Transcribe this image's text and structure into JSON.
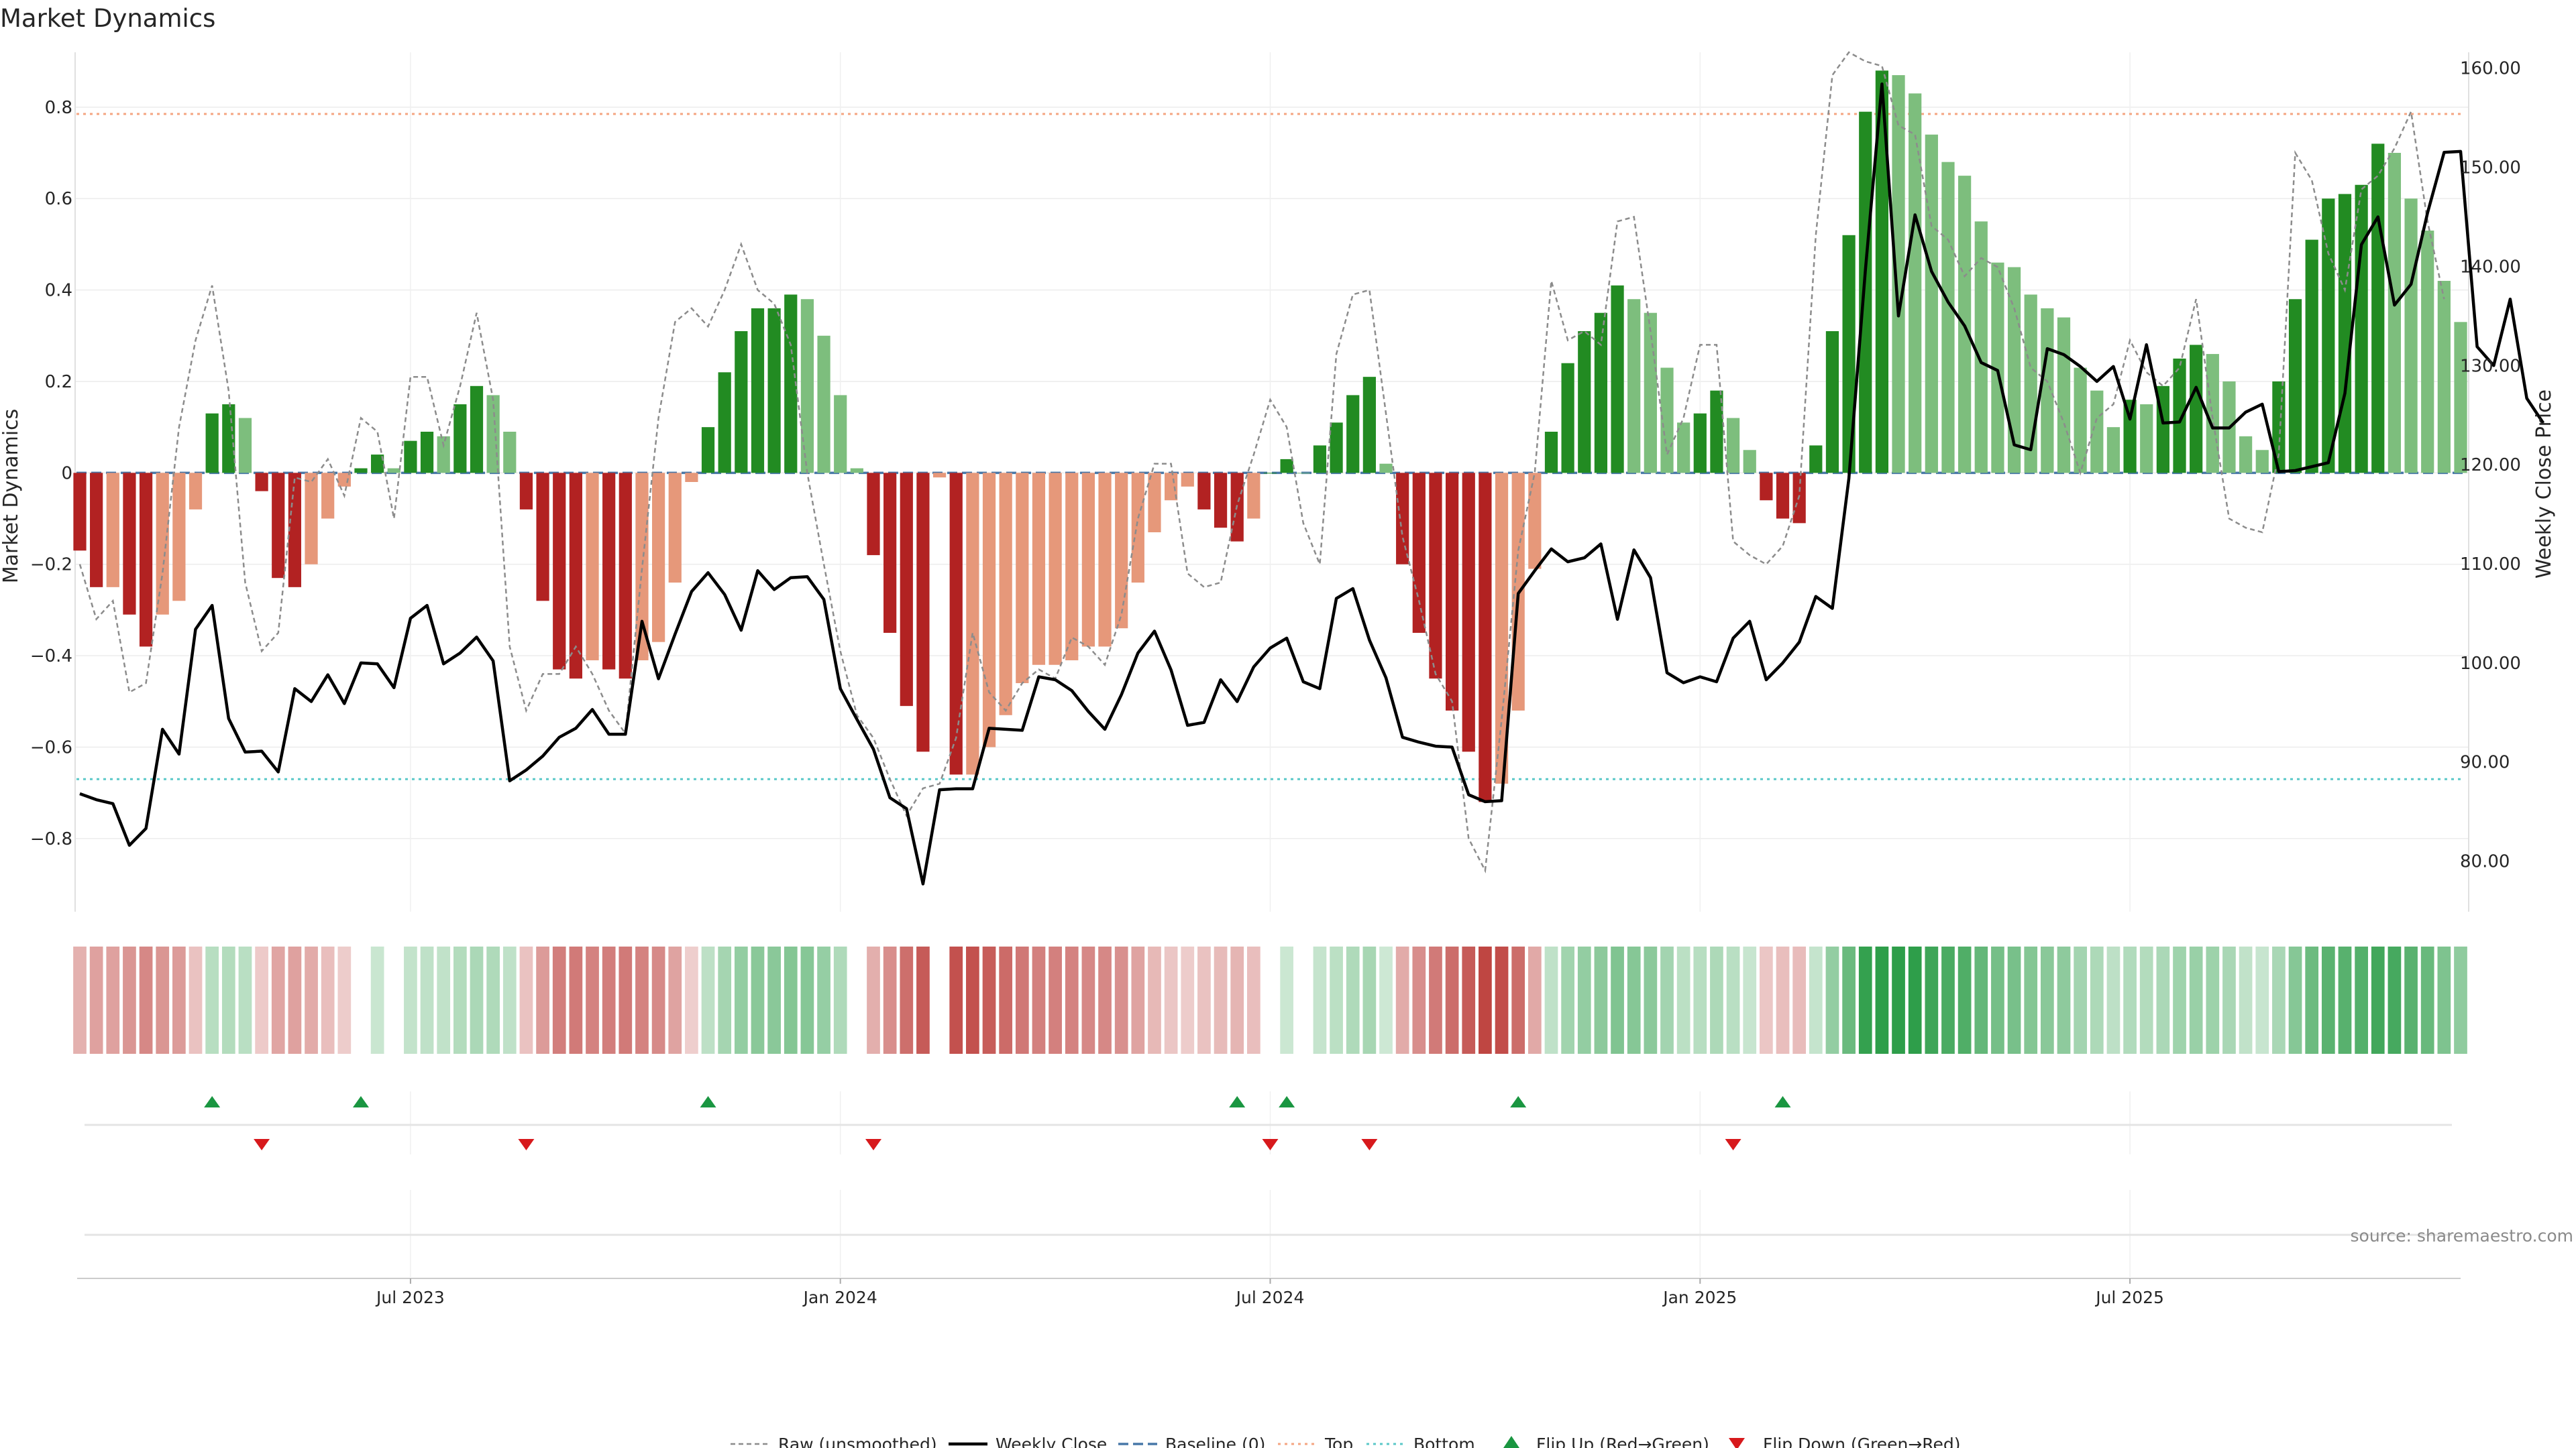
{
  "chart_data": {
    "type": "bar",
    "title": "Market Dynamics",
    "ylabel_left": "Market Dynamics",
    "ylabel_right": "Weekly Close Price",
    "source": "source: sharemaestro.com",
    "left_axis": {
      "range": [
        -0.96,
        0.92
      ],
      "ticks": [
        0.8,
        0.6,
        0.4,
        0.2,
        0,
        -0.2,
        -0.4,
        -0.6,
        -0.8
      ],
      "tick_labels": [
        "0.8",
        "0.6",
        "0.4",
        "0.2",
        "0",
        "−0.2",
        "−0.4",
        "−0.6",
        "−0.8"
      ]
    },
    "right_axis": {
      "range": [
        74.9,
        161.6
      ],
      "ticks": [
        160,
        150,
        140,
        130,
        120,
        110,
        100,
        90,
        80
      ],
      "tick_labels": [
        "160.00",
        "150.00",
        "140.00",
        "130.00",
        "120.00",
        "110.00",
        "100.00",
        "90.00",
        "80.00"
      ]
    },
    "x_axis": {
      "ticks": [
        20,
        46,
        72,
        98,
        124
      ],
      "tick_labels": [
        "Jul 2023",
        "Jan 2024",
        "Jul 2024",
        "Jan 2025",
        "Jul 2025"
      ]
    },
    "reference_lines": {
      "baseline": 0,
      "top": 0.785,
      "bottom": -0.67
    },
    "values": [
      -0.17,
      -0.25,
      -0.25,
      -0.31,
      -0.38,
      -0.31,
      -0.28,
      -0.08,
      0.13,
      0.15,
      0.12,
      -0.04,
      -0.23,
      -0.25,
      -0.2,
      -0.1,
      -0.03,
      0.01,
      0.04,
      0.01,
      0.07,
      0.09,
      0.08,
      0.15,
      0.19,
      0.17,
      0.09,
      -0.08,
      -0.28,
      -0.43,
      -0.45,
      -0.41,
      -0.43,
      -0.45,
      -0.41,
      -0.37,
      -0.24,
      -0.02,
      0.1,
      0.22,
      0.31,
      0.36,
      0.36,
      0.39,
      0.38,
      0.3,
      0.17,
      0.01,
      -0.18,
      -0.35,
      -0.51,
      -0.61,
      -0.01,
      -0.66,
      -0.66,
      -0.6,
      -0.53,
      -0.46,
      -0.42,
      -0.42,
      -0.41,
      -0.38,
      -0.38,
      -0.34,
      -0.24,
      -0.13,
      -0.06,
      -0.03,
      -0.08,
      -0.12,
      -0.15,
      -0.1,
      0.0,
      0.03,
      0.0,
      0.06,
      0.11,
      0.17,
      0.21,
      0.02,
      -0.2,
      -0.35,
      -0.45,
      -0.52,
      -0.61,
      -0.72,
      -0.68,
      -0.52,
      -0.21,
      0.09,
      0.24,
      0.31,
      0.35,
      0.41,
      0.38,
      0.35,
      0.23,
      0.11,
      0.13,
      0.18,
      0.12,
      0.05,
      -0.06,
      -0.1,
      -0.11,
      0.06,
      0.31,
      0.52,
      0.79,
      0.88,
      0.87,
      0.83,
      0.74,
      0.68,
      0.65,
      0.55,
      0.46,
      0.45,
      0.39,
      0.36,
      0.34,
      0.23,
      0.18,
      0.1,
      0.16,
      0.15,
      0.19,
      0.25,
      0.28,
      0.26,
      0.2,
      0.08,
      0.05,
      0.2,
      0.38,
      0.51,
      0.6,
      0.61,
      0.63,
      0.72,
      0.7,
      0.6,
      0.53,
      0.42,
      0.33
    ],
    "series": [
      {
        "name": "Raw (unsmoothed)",
        "values": [
          -0.2,
          -0.32,
          -0.28,
          -0.48,
          -0.46,
          -0.22,
          0.1,
          0.29,
          0.41,
          0.18,
          -0.24,
          -0.39,
          -0.35,
          -0.01,
          -0.02,
          0.03,
          -0.05,
          0.12,
          0.09,
          -0.1,
          0.21,
          0.21,
          0.06,
          0.19,
          0.35,
          0.16,
          -0.38,
          -0.52,
          -0.44,
          -0.44,
          -0.38,
          -0.44,
          -0.52,
          -0.57,
          -0.21,
          0.12,
          0.33,
          0.36,
          0.32,
          0.4,
          0.5,
          0.4,
          0.37,
          0.28,
          0.0,
          -0.2,
          -0.39,
          -0.53,
          -0.58,
          -0.67,
          -0.75,
          -0.69,
          -0.68,
          -0.58,
          -0.35,
          -0.48,
          -0.52,
          -0.46,
          -0.43,
          -0.45,
          -0.36,
          -0.38,
          -0.42,
          -0.31,
          -0.1,
          0.02,
          0.02,
          -0.22,
          -0.25,
          -0.24,
          -0.07,
          0.04,
          0.16,
          0.1,
          -0.11,
          -0.2,
          0.26,
          0.39,
          0.4,
          0.13,
          -0.14,
          -0.28,
          -0.44,
          -0.5,
          -0.8,
          -0.87,
          -0.54,
          -0.17,
          0.0,
          0.42,
          0.29,
          0.31,
          0.28,
          0.55,
          0.56,
          0.31,
          0.04,
          0.12,
          0.28,
          0.28,
          -0.15,
          -0.18,
          -0.2,
          -0.16,
          -0.05,
          0.52,
          0.87,
          0.92,
          0.9,
          0.89,
          0.76,
          0.74,
          0.54,
          0.51,
          0.43,
          0.47,
          0.45,
          0.36,
          0.23,
          0.2,
          0.11,
          0.0,
          0.12,
          0.15,
          0.29,
          0.22,
          0.19,
          0.23,
          0.38,
          0.12,
          -0.1,
          -0.12,
          -0.13,
          0.04,
          0.7,
          0.64,
          0.48,
          0.4,
          0.62,
          0.65,
          0.71,
          0.79,
          0.55,
          0.38
        ]
      },
      {
        "name": "Weekly Close",
        "values": [
          86.8,
          86.2,
          85.8,
          81.6,
          83.3,
          93.3,
          90.8,
          103.4,
          105.8,
          94.4,
          91.0,
          91.1,
          89.0,
          97.4,
          96.1,
          98.8,
          95.9,
          100.0,
          99.9,
          97.5,
          104.5,
          105.8,
          99.9,
          101.0,
          102.6,
          100.2,
          88.1,
          89.2,
          90.6,
          92.5,
          93.4,
          95.3,
          92.8,
          92.8,
          104.2,
          98.4,
          102.9,
          107.2,
          109.1,
          106.9,
          103.3,
          109.3,
          107.4,
          108.6,
          108.7,
          106.4,
          97.4,
          94.3,
          91.3,
          86.4,
          85.3,
          77.7,
          87.2,
          87.3,
          87.3,
          93.4,
          93.3,
          93.2,
          98.6,
          98.3,
          97.2,
          95.1,
          93.3,
          96.8,
          101.0,
          103.2,
          99.3,
          93.7,
          94.0,
          98.3,
          96.1,
          99.6,
          101.5,
          102.5,
          98.1,
          97.4,
          106.5,
          107.5,
          102.3,
          98.5,
          92.5,
          92.0,
          91.6,
          91.5,
          86.7,
          86.0,
          86.1,
          107.0,
          109.3,
          111.5,
          110.2,
          110.6,
          112.0,
          104.4,
          111.4,
          108.6,
          99.0,
          98.0,
          98.6,
          98.1,
          102.5,
          104.2,
          98.3,
          100.0,
          102.1,
          106.7,
          105.5,
          118.6,
          139.7,
          158.4,
          135.0,
          145.2,
          139.5,
          136.4,
          134.0,
          130.3,
          129.5,
          122.0,
          121.5,
          131.7,
          131.1,
          129.9,
          128.4,
          129.9,
          124.6,
          132.1,
          124.2,
          124.3,
          127.8,
          123.7,
          123.7,
          125.3,
          126.1,
          119.3,
          119.4,
          119.8,
          120.2,
          127.2,
          142.2,
          145.0,
          136.1,
          138.2,
          145.4,
          151.5,
          151.6,
          131.9,
          130.0,
          136.7,
          126.7,
          124.2
        ]
      }
    ],
    "flip_up_weeks": [
      8,
      17,
      38,
      70,
      73,
      87,
      103
    ],
    "flip_down_weeks": [
      11,
      27,
      48,
      72,
      78,
      100
    ],
    "legend": {
      "raw": "Raw (unsmoothed)",
      "close": "Weekly Close",
      "baseline": "Baseline (0)",
      "top": "Top",
      "bottom": "Bottom",
      "flip_up": "Flip Up (Red→Green)",
      "flip_down": "Flip Down (Green→Red)"
    },
    "colors": {
      "strong_green": "#228B22",
      "light_green": "#7DBE7D",
      "strong_red": "#B22222",
      "light_red": "#E6987A",
      "raw": "#8c8c8c",
      "close": "#000000",
      "baseline": "#4878a8",
      "top": "#F4A582",
      "bottom": "#5BC8C8",
      "flip_up": "#1a9641",
      "flip_down": "#d7191c"
    },
    "grid": true,
    "legend_position": "bottom"
  }
}
